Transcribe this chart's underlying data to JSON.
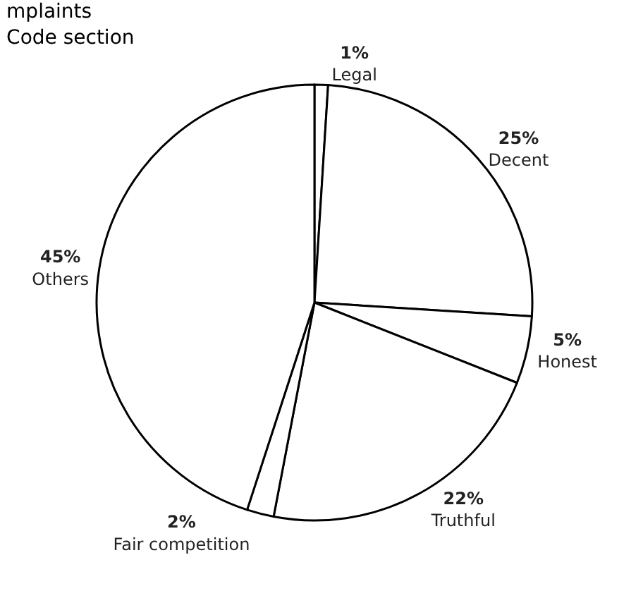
{
  "chart_data": {
    "type": "pie",
    "title": "mplaints\nCode section",
    "categories": [
      "Legal",
      "Decent",
      "Honest",
      "Truthful",
      "Fair competition",
      "Others"
    ],
    "values": [
      1,
      25,
      5,
      22,
      2,
      45
    ],
    "value_labels": [
      "1%",
      "25%",
      "5%",
      "22%",
      "2%",
      "45%"
    ],
    "colors": [
      "#ffffff",
      "#ffffff",
      "#ffffff",
      "#ffffff",
      "#ffffff",
      "#ffffff"
    ],
    "legend": false
  }
}
